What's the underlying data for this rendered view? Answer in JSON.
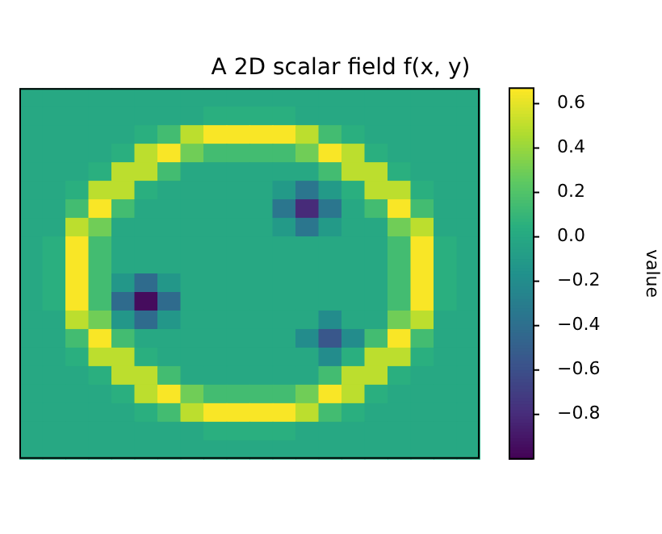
{
  "chart_data": {
    "type": "heatmap",
    "title": "A 2D scalar field f(x, y)",
    "clabel": "value",
    "tick_labels": false,
    "categories": [
      null,
      null,
      null,
      null,
      null,
      null,
      null,
      null,
      null,
      null,
      null,
      null,
      null,
      null,
      null,
      null,
      null,
      null,
      null,
      null
    ],
    "y_categories": [
      null,
      null,
      null,
      null,
      null,
      null,
      null,
      null,
      null,
      null,
      null,
      null,
      null,
      null,
      null,
      null,
      null,
      null,
      null,
      null
    ],
    "clim": [
      -1.0,
      0.67
    ],
    "cticks": [
      {
        "value": -0.8,
        "label": "−0.8"
      },
      {
        "value": -0.6,
        "label": "−0.6"
      },
      {
        "value": -0.4,
        "label": "−0.4"
      },
      {
        "value": -0.2,
        "label": "−0.2"
      },
      {
        "value": 0,
        "label": "0.0"
      },
      {
        "value": 0.2,
        "label": "0.2"
      },
      {
        "value": 0.4,
        "label": "0.4"
      },
      {
        "value": 0.6,
        "label": "0.6"
      }
    ],
    "cells": [
      [
        0,
        0,
        0,
        0,
        0,
        0,
        0,
        0,
        0,
        0,
        0,
        0,
        0,
        0,
        0,
        0,
        0,
        0,
        0,
        0
      ],
      [
        0,
        0,
        0,
        0,
        0,
        0,
        0,
        0,
        0.05,
        0.05,
        0.05,
        0.05,
        0,
        0,
        0,
        0,
        0,
        0,
        0,
        0
      ],
      [
        0,
        0,
        0,
        0,
        0,
        0.05,
        0.15,
        0.5,
        0.66,
        0.66,
        0.66,
        0.66,
        0.5,
        0.15,
        0.05,
        0,
        0,
        0,
        0,
        0
      ],
      [
        0,
        0,
        0,
        0,
        0.05,
        0.5,
        0.66,
        0.3,
        0.15,
        0.15,
        0.15,
        0.15,
        0.3,
        0.66,
        0.5,
        0.05,
        0,
        0,
        0,
        0
      ],
      [
        0,
        0,
        0,
        0.05,
        0.5,
        0.5,
        0.15,
        0,
        0,
        0,
        0,
        0,
        0,
        0.15,
        0.5,
        0.5,
        0.05,
        0,
        0,
        0
      ],
      [
        0,
        0,
        0.05,
        0.5,
        0.5,
        0.05,
        0,
        0,
        0,
        0,
        0,
        -0.1,
        -0.35,
        -0.1,
        0.05,
        0.5,
        0.5,
        0.05,
        0,
        0
      ],
      [
        0,
        0,
        0.15,
        0.66,
        0.15,
        0,
        0,
        0,
        0,
        0,
        0,
        -0.35,
        -0.8,
        -0.35,
        0,
        0.15,
        0.66,
        0.15,
        0,
        0
      ],
      [
        0,
        0,
        0.5,
        0.3,
        0,
        0,
        0,
        0,
        0,
        0,
        0,
        -0.1,
        -0.35,
        -0.1,
        0,
        0,
        0.3,
        0.5,
        0,
        0
      ],
      [
        0,
        0.05,
        0.66,
        0.15,
        0,
        0,
        0,
        0,
        0,
        0,
        0,
        0,
        0,
        0,
        0,
        0,
        0.15,
        0.66,
        0.05,
        0
      ],
      [
        0,
        0.05,
        0.66,
        0.15,
        0,
        0,
        0,
        0,
        0,
        0,
        0,
        0,
        0,
        0,
        0,
        0,
        0.15,
        0.66,
        0.05,
        0
      ],
      [
        0,
        0.05,
        0.66,
        0.15,
        -0.12,
        -0.42,
        -0.12,
        0,
        0,
        0,
        0,
        0,
        0,
        0,
        0,
        0,
        0.15,
        0.66,
        0.05,
        0
      ],
      [
        0,
        0.05,
        0.66,
        0.15,
        -0.42,
        -0.95,
        -0.42,
        0,
        0,
        0,
        0,
        0,
        0,
        0,
        0,
        0,
        0.15,
        0.66,
        0.05,
        0
      ],
      [
        0,
        0,
        0.5,
        0.3,
        -0.12,
        -0.42,
        -0.12,
        0,
        0,
        0,
        0,
        0,
        0,
        -0.2,
        0,
        0,
        0.3,
        0.5,
        0,
        0
      ],
      [
        0,
        0,
        0.15,
        0.66,
        0.15,
        0,
        0,
        0,
        0,
        0,
        0,
        0,
        -0.2,
        -0.55,
        -0.2,
        0.15,
        0.66,
        0.15,
        0,
        0
      ],
      [
        0,
        0,
        0.05,
        0.5,
        0.5,
        0.05,
        0,
        0,
        0,
        0,
        0,
        0,
        0,
        -0.2,
        0.05,
        0.5,
        0.5,
        0.05,
        0,
        0
      ],
      [
        0,
        0,
        0,
        0.05,
        0.5,
        0.5,
        0.15,
        0,
        0,
        0,
        0,
        0,
        0,
        0.15,
        0.5,
        0.5,
        0.05,
        0,
        0,
        0
      ],
      [
        0,
        0,
        0,
        0,
        0.05,
        0.5,
        0.66,
        0.3,
        0.15,
        0.15,
        0.15,
        0.15,
        0.3,
        0.66,
        0.5,
        0.05,
        0,
        0,
        0,
        0
      ],
      [
        0,
        0,
        0,
        0,
        0,
        0.05,
        0.15,
        0.5,
        0.66,
        0.66,
        0.66,
        0.66,
        0.5,
        0.15,
        0.05,
        0,
        0,
        0,
        0,
        0
      ],
      [
        0,
        0,
        0,
        0,
        0,
        0,
        0,
        0,
        0.05,
        0.05,
        0.05,
        0.05,
        0,
        0,
        0,
        0,
        0,
        0,
        0,
        0
      ],
      [
        0,
        0,
        0,
        0,
        0,
        0,
        0,
        0,
        0,
        0,
        0,
        0,
        0,
        0,
        0,
        0,
        0,
        0,
        0,
        0
      ]
    ]
  }
}
